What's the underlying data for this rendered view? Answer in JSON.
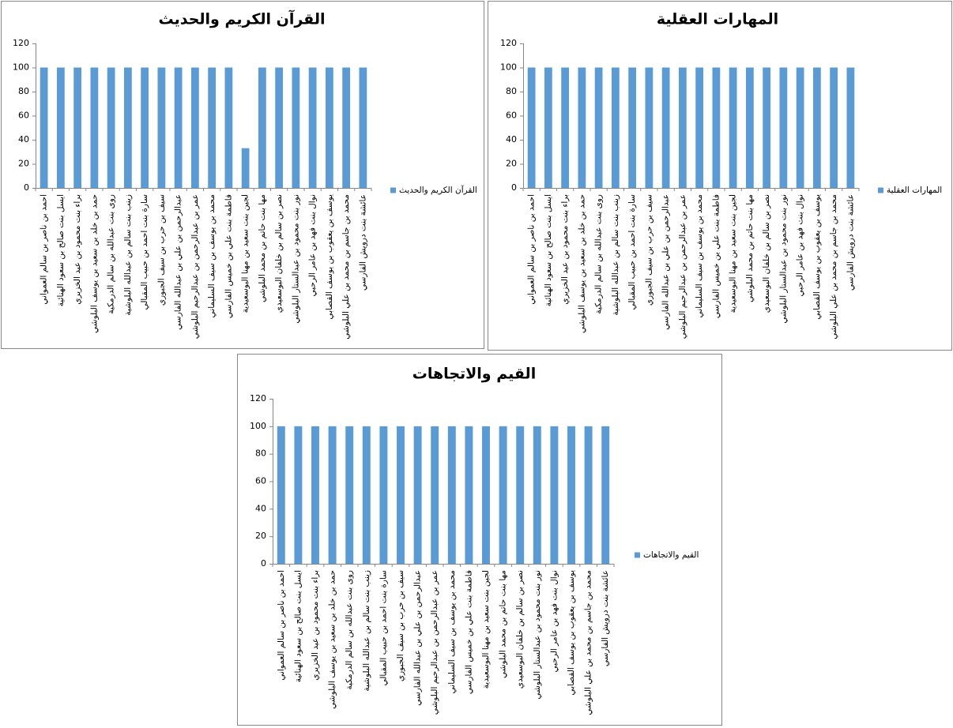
{
  "chart_data": [
    {
      "type": "bar",
      "title": "القرآن الكريم والحديث",
      "categories": [
        "احمد بن ناصر بن سالم العمواني",
        "ايسل بنت صالح بن سعود الهنائية",
        "براء بنت محمود بن عيد الخزيري",
        "حمد بن خلد بن سعيد بن يوسف البلوشي",
        "روى بنت عبدالله بن سالم الدرمكية",
        "زينب بنت سالم بن عبدالله البلوشية",
        "سارة بنت احمد بن حبيب المقبالي",
        "سيف بن حرب بن سيف الجبوري",
        "عبدالرحمن بن علي بن عبدالله الفارسي",
        "عمر بن عبدالرحمن بن عبدالرحيم البلوشي",
        "محمد بن يوسف بن سيف السليماني",
        "فاطمة بنت علي بن خميس الفارسي",
        "لجين بنت سعيد بن مهنا البوسعيدية",
        "مها بنت حاتم بن محمد البلوشي",
        "نصر بن سالم بن خلفان البوسعيدي",
        "نور بنت محمود بن عبدالستار البلوشي",
        "نوال بنت فهد بن عامر الرحبي",
        "يوسف بن يعقوب بن يوسف القصابي",
        "محمد بن جاسم بن محمد بن علي البلوشي",
        "عائشة بنت درويش الفارسي"
      ],
      "series": [
        {
          "name": "القرآن الكريم والحديث",
          "color": "#5b9bd5",
          "values": [
            100,
            100,
            100,
            100,
            100,
            100,
            100,
            100,
            100,
            100,
            100,
            100,
            33,
            100,
            100,
            100,
            100,
            100,
            100,
            100
          ]
        }
      ],
      "ylim": [
        0,
        120
      ],
      "yticks": [
        0,
        20,
        40,
        60,
        80,
        100,
        120
      ]
    },
    {
      "type": "bar",
      "title": "المهارات العقلية",
      "categories": [
        "احمد بن ناصر بن سالم العمواني",
        "ايسل بنت صالح بن سعود الهنائية",
        "براء بنت محمود بن عيد الخزيري",
        "حمد بن خلد بن سعيد بن يوسف البلوشي",
        "روى بنت عبدالله بن سالم الدرمكية",
        "زينب بنت سالم بن عبدالله البلوشية",
        "سارة بنت احمد بن حبيب المقبالي",
        "سيف بن حرب بن سيف الجبوري",
        "عبدالرحمن بن علي بن عبدالله الفارسي",
        "عمر بن عبدالرحمن بن عبدالرحيم البلوشي",
        "محمد بن يوسف بن سيف السليماني",
        "فاطمة بنت علي بن خميس الفارسي",
        "لجين بنت سعيد بن مهنا البوسعيدية",
        "مها بنت حاتم بن محمد البلوشي",
        "نصر بن سالم بن خلفان البوسعيدي",
        "نور بنت محمود بن عبدالستار البلوشي",
        "نوال بنت فهد بن عامر الرحبي",
        "يوسف بن يعقوب بن يوسف القصابي",
        "محمد بن جاسم بن محمد بن علي البلوشي",
        "عائشة بنت درويش الفارسي"
      ],
      "series": [
        {
          "name": "المهارات العقلية",
          "color": "#5b9bd5",
          "values": [
            100,
            100,
            100,
            100,
            100,
            100,
            100,
            100,
            100,
            100,
            100,
            100,
            100,
            100,
            100,
            100,
            100,
            100,
            100,
            100
          ]
        }
      ],
      "ylim": [
        0,
        120
      ],
      "yticks": [
        0,
        20,
        40,
        60,
        80,
        100,
        120
      ]
    },
    {
      "type": "bar",
      "title": "القيم والاتجاهات",
      "categories": [
        "احمد بن ناصر بن سالم العمواني",
        "ايسل بنت صالح بن سعود الهنائية",
        "براء بنت محمود بن عيد الخزيري",
        "حمد بن خلد بن سعيد بن يوسف البلوشي",
        "روى بنت عبدالله بن سالم الدرمكية",
        "زينب بنت سالم بن عبدالله البلوشية",
        "سارة بنت احمد بن حبيب المقبالي",
        "سيف بن حرب بن سيف الجبوري",
        "عبدالرحمن بن علي بن عبدالله الفارسي",
        "عمر بن عبدالرحمن بن عبدالرحيم البلوشي",
        "محمد بن يوسف بن سيف السليماني",
        "فاطمة بنت علي بن خميس الفارسي",
        "لجين بنت سعيد بن مهنا البوسعيدية",
        "مها بنت حاتم بن محمد البلوشي",
        "نصر بن سالم بن خلفان البوسعيدي",
        "نور بنت محمود بن عبدالستار البلوشي",
        "نوال بنت فهد بن عامر الرحبي",
        "يوسف بن يعقوب بن يوسف القصابي",
        "محمد بن جاسم بن محمد بن علي البلوشي",
        "عائشة بنت درويش الفارسي"
      ],
      "series": [
        {
          "name": "القيم والاتجاهات",
          "color": "#5b9bd5",
          "values": [
            100,
            100,
            100,
            100,
            100,
            100,
            100,
            100,
            100,
            100,
            100,
            100,
            100,
            100,
            100,
            100,
            100,
            100,
            100,
            100
          ]
        }
      ],
      "ylim": [
        0,
        120
      ],
      "yticks": [
        0,
        20,
        40,
        60,
        80,
        100,
        120
      ]
    }
  ]
}
